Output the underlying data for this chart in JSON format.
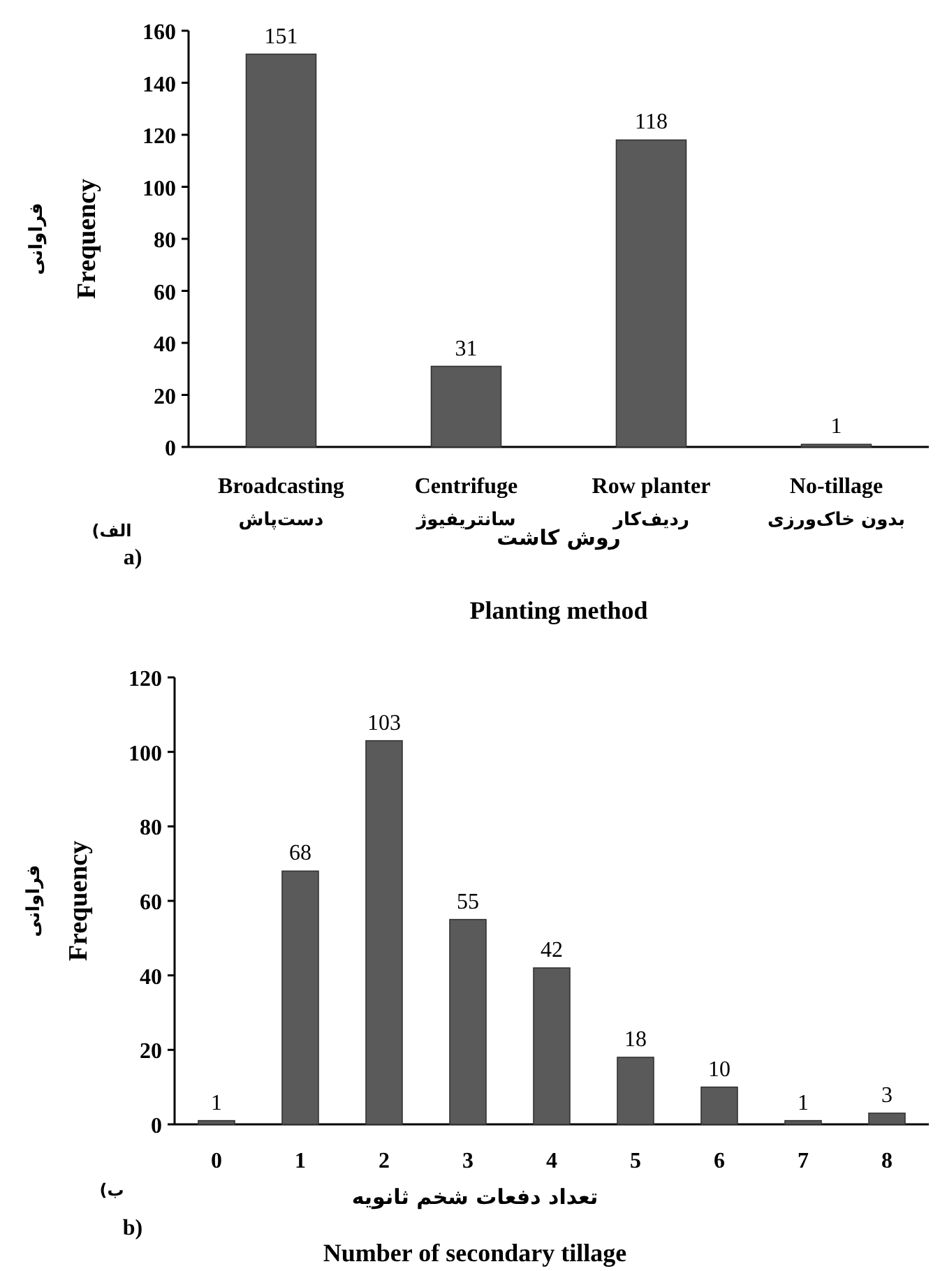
{
  "chart_data": [
    {
      "type": "bar",
      "xlabel": "Planting method",
      "ylabel": "Frequency",
      "categories": [
        "Broadcasting",
        "Centrifuge",
        "Row planter",
        "No-tillage"
      ],
      "values": [
        151,
        31,
        118,
        1
      ],
      "color": "#5a5a5a",
      "data_labels": true,
      "ylim": [
        0,
        160
      ],
      "yticks": [
        0,
        20,
        40,
        60,
        80,
        100,
        120,
        140,
        160
      ],
      "annotations": [
        "دست‌پاش",
        "سانتریفیوژ",
        "ردیف‌کار",
        "بدون خاک‌ورزی",
        "روش کاشت",
        "فراوانی",
        "الف)",
        "a)"
      ]
    },
    {
      "type": "bar",
      "xlabel": "Number of secondary tillage",
      "ylabel": "Frequency",
      "categories": [
        "0",
        "1",
        "2",
        "3",
        "4",
        "5",
        "6",
        "7",
        "8"
      ],
      "values": [
        1,
        68,
        103,
        55,
        42,
        18,
        10,
        1,
        3
      ],
      "color": "#5a5a5a",
      "data_labels": true,
      "ylim": [
        0,
        120
      ],
      "yticks": [
        0,
        20,
        40,
        60,
        80,
        100,
        120
      ],
      "annotations": [
        "تعداد دفعات شخم ثانویه",
        "فراوانی",
        "ب)",
        "b)"
      ]
    }
  ]
}
